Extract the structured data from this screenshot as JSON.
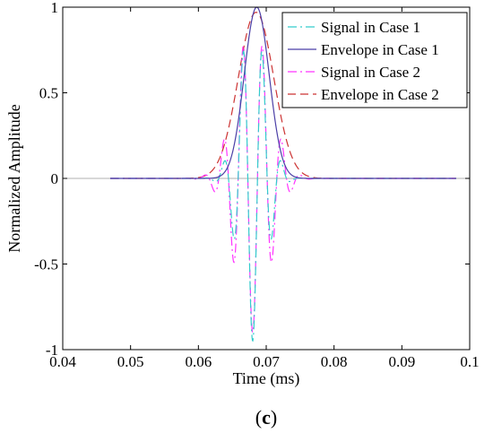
{
  "chart_data": {
    "type": "line",
    "xlabel": "Time (ms)",
    "ylabel": "Normalized Amplitude",
    "caption_open": "(",
    "caption_letter": "c",
    "caption_close": ")",
    "xlim": [
      0.04,
      0.1
    ],
    "ylim": [
      -1,
      1
    ],
    "x_ticks": [
      "0.04",
      "0.05",
      "0.06",
      "0.07",
      "0.08",
      "0.09",
      "0.1"
    ],
    "x_tick_values": [
      0.04,
      0.05,
      0.06,
      0.07,
      0.08,
      0.09,
      0.1
    ],
    "y_ticks": [
      "-1",
      "-0.5",
      "0",
      "0.5",
      "1"
    ],
    "y_tick_values": [
      -1,
      -0.5,
      0,
      0.5,
      1
    ],
    "grid": false,
    "legend_position": "top-right",
    "series": [
      {
        "name": "Signal in Case 1",
        "color": "#33cccc",
        "dash": "dashdot",
        "kind": "burst",
        "center": 0.068,
        "envelope_width": 0.0028,
        "carrier_period": 0.00285,
        "carrier_phase": 3.1416,
        "peak": 0.95
      },
      {
        "name": "Envelope in Case 1",
        "color": "#4b3fa6",
        "dash": "solid",
        "kind": "envelope",
        "center": 0.0686,
        "envelope_width": 0.0026,
        "peak": 1.0
      },
      {
        "name": "Signal in Case 2",
        "color": "#ff33ff",
        "dash": "dashdot",
        "kind": "burst",
        "center": 0.068,
        "envelope_width": 0.0036,
        "carrier_period": 0.00285,
        "carrier_phase": 3.1416,
        "peak": 0.9
      },
      {
        "name": "Envelope in Case 2",
        "color": "#cc3333",
        "dash": "dash",
        "kind": "envelope",
        "center": 0.0685,
        "envelope_width": 0.0037,
        "peak": 0.97
      }
    ]
  }
}
